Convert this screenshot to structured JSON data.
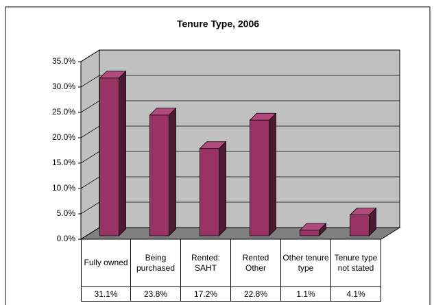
{
  "chart_data": {
    "type": "bar3d",
    "title": "Tenure Type, 2006",
    "categories": [
      "Fully owned",
      "Being purchased",
      "Rented: SAHT",
      "Rented Other",
      "Other tenure type",
      "Tenure type not stated"
    ],
    "values": [
      31.1,
      23.8,
      17.2,
      22.8,
      1.1,
      4.1
    ],
    "value_labels": [
      "31.1%",
      "23.8%",
      "17.2%",
      "22.8%",
      "1.1%",
      "4.1%"
    ],
    "color": "#993366",
    "ylim": [
      0,
      35
    ],
    "yticks": [
      {
        "value": 0,
        "label": "0.0%"
      },
      {
        "value": 5,
        "label": "5.0%"
      },
      {
        "value": 10,
        "label": "10.0%"
      },
      {
        "value": 15,
        "label": "15.0%"
      },
      {
        "value": 20,
        "label": "20.0%"
      },
      {
        "value": 25,
        "label": "25.0%"
      },
      {
        "value": 30,
        "label": "30.0%"
      },
      {
        "value": 35,
        "label": "35.0%"
      }
    ],
    "grid": true
  }
}
